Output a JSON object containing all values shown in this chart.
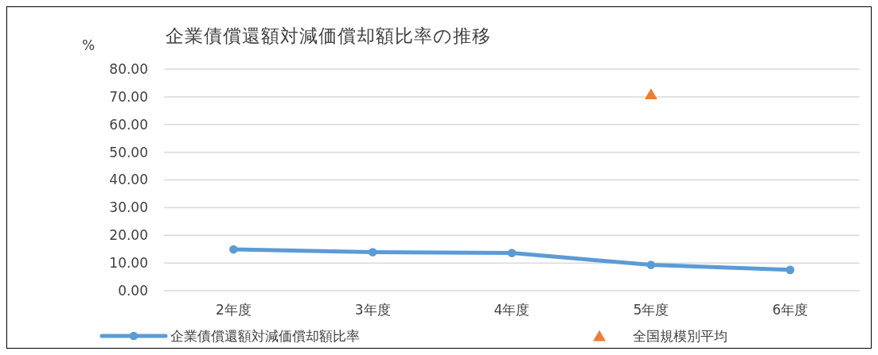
{
  "chart_data": {
    "type": "line",
    "title": "企業債償還額対減価償却額比率の推移",
    "ylabel": "%",
    "categories": [
      "2年度",
      "3年度",
      "4年度",
      "5年度",
      "6年度"
    ],
    "series": [
      {
        "name": "企業債償還額対減価償却額比率",
        "color": "#5b9bd5",
        "values": [
          14.9,
          13.9,
          13.6,
          9.3,
          7.5
        ],
        "marker": "circle"
      },
      {
        "name": "全国規模別平均",
        "type": "scatter",
        "color": "#ed7d31",
        "x": [
          "5年度"
        ],
        "values": [
          71
        ],
        "marker": "triangle"
      }
    ],
    "ylim": [
      0,
      80
    ],
    "yticks": [
      {
        "value": 0,
        "label": "0.00"
      },
      {
        "value": 10,
        "label": "10.00"
      },
      {
        "value": 20,
        "label": "20.00"
      },
      {
        "value": 30,
        "label": "30.00"
      },
      {
        "value": 40,
        "label": "40.00"
      },
      {
        "value": 50,
        "label": "50.00"
      },
      {
        "value": 60,
        "label": "60.00"
      },
      {
        "value": 70,
        "label": "70.00"
      },
      {
        "value": 80,
        "label": "80.00"
      }
    ],
    "grid": "y",
    "legend": "bottom"
  }
}
